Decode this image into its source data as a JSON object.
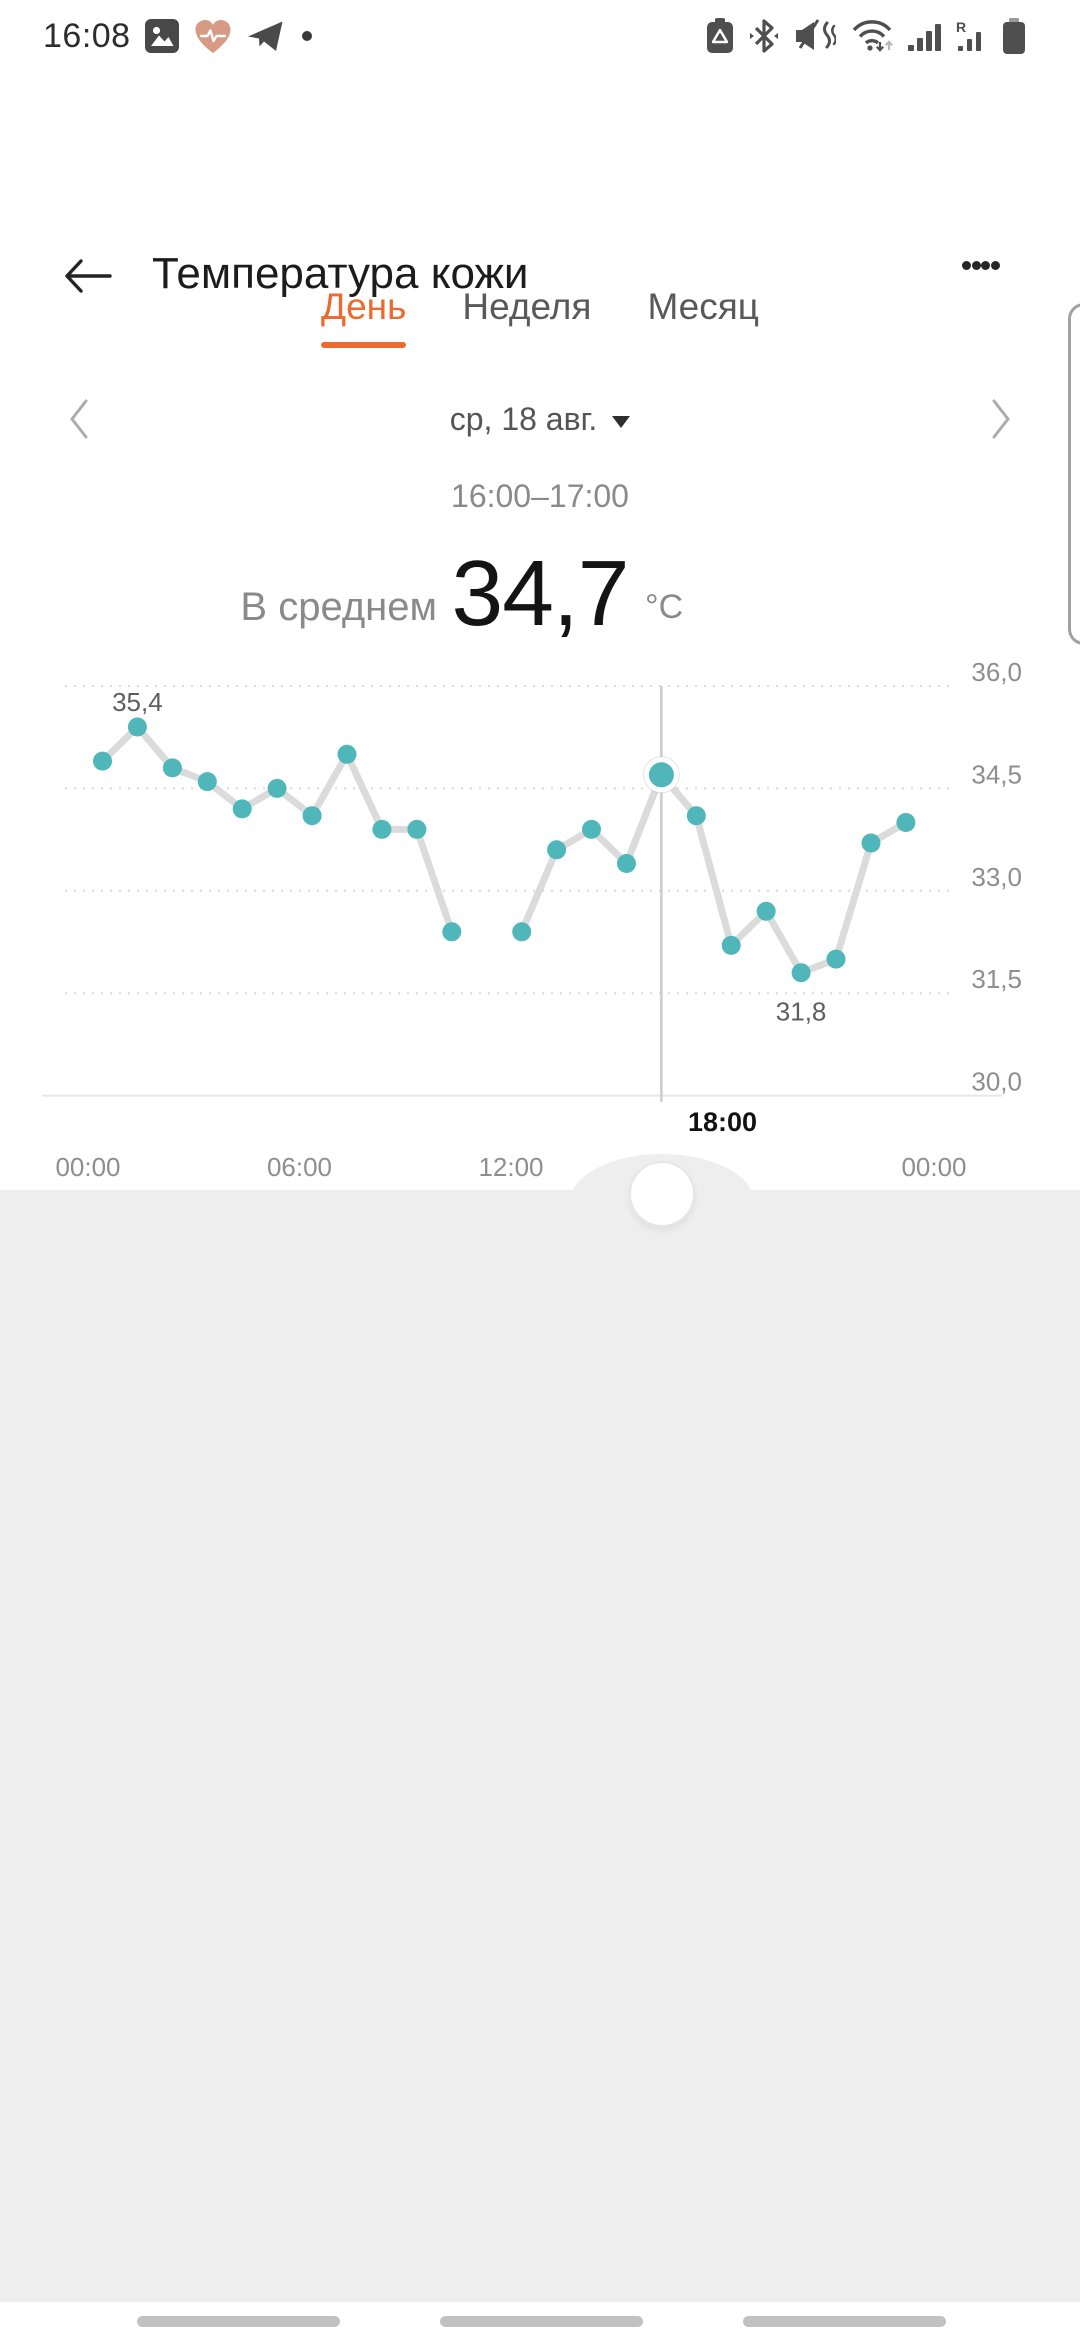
{
  "status_bar": {
    "time": "16:08",
    "left_icons": [
      "photo-notification-icon",
      "health-heart-notification-icon",
      "telegram-notification-icon",
      "notification-dot"
    ],
    "right_icons": [
      "battery-saver-icon",
      "bluetooth-icon",
      "vibrate-mute-icon",
      "wifi-arrows-icon",
      "signal-bars-icon",
      "roaming-signal-icon",
      "battery-icon"
    ]
  },
  "header": {
    "title": "Температура кожи"
  },
  "tabs": {
    "items": [
      {
        "label": "День",
        "active": true
      },
      {
        "label": "Неделя",
        "active": false
      },
      {
        "label": "Месяц",
        "active": false
      }
    ]
  },
  "date_nav": {
    "date_label": "ср, 18 авг."
  },
  "summary": {
    "time_range": "16:00–17:00",
    "average_label": "В среднем",
    "average_value": "34,7",
    "unit": "°C"
  },
  "chart_data": {
    "type": "line",
    "title": "Температура кожи — день",
    "x_unit": "hour",
    "x": [
      0,
      1,
      2,
      3,
      4,
      5,
      6,
      7,
      8,
      9,
      10,
      11,
      12,
      13,
      14,
      15,
      16,
      17,
      18,
      19,
      20,
      21,
      22,
      23
    ],
    "series": [
      {
        "name": "Температура кожи (°C)",
        "values": [
          34.9,
          35.4,
          34.8,
          34.6,
          34.2,
          34.5,
          34.1,
          35.0,
          33.9,
          33.9,
          32.4,
          null,
          32.4,
          33.6,
          33.9,
          33.4,
          34.7,
          34.1,
          32.2,
          32.7,
          31.8,
          32.0,
          33.7,
          34.0
        ]
      }
    ],
    "ylim": [
      30.0,
      36.0
    ],
    "y_ticks": [
      "36,0",
      "34,5",
      "33,0",
      "31,5",
      "30,0"
    ],
    "y_tick_values": [
      36.0,
      34.5,
      33.0,
      31.5,
      30.0
    ],
    "x_tick_labels": [
      "00:00",
      "06:00",
      "12:00",
      "18:00",
      "00:00"
    ],
    "x_tick_hours": [
      0,
      6,
      12,
      18,
      24
    ],
    "highlighted_x_index": 3,
    "selected_hour": 16,
    "selected_value": 34.7,
    "annotations": [
      {
        "hour": 1,
        "text": "35,4",
        "position": "above"
      },
      {
        "hour": 20,
        "text": "31,8",
        "position": "below"
      }
    ],
    "grid": true,
    "legend": "none",
    "colors": {
      "dot": "#4FB6BA",
      "line": "#DBDBDB",
      "grid": "#D9D9D9",
      "axis": "#E8E8E8",
      "indicator": "#CBCBCB",
      "tick_label": "#8E8E8E",
      "annotation": "#5E5E5E",
      "highlight_label": "#121212"
    }
  },
  "colors": {
    "accent": "#EC6A2F",
    "panel": "#EFEEEE"
  }
}
